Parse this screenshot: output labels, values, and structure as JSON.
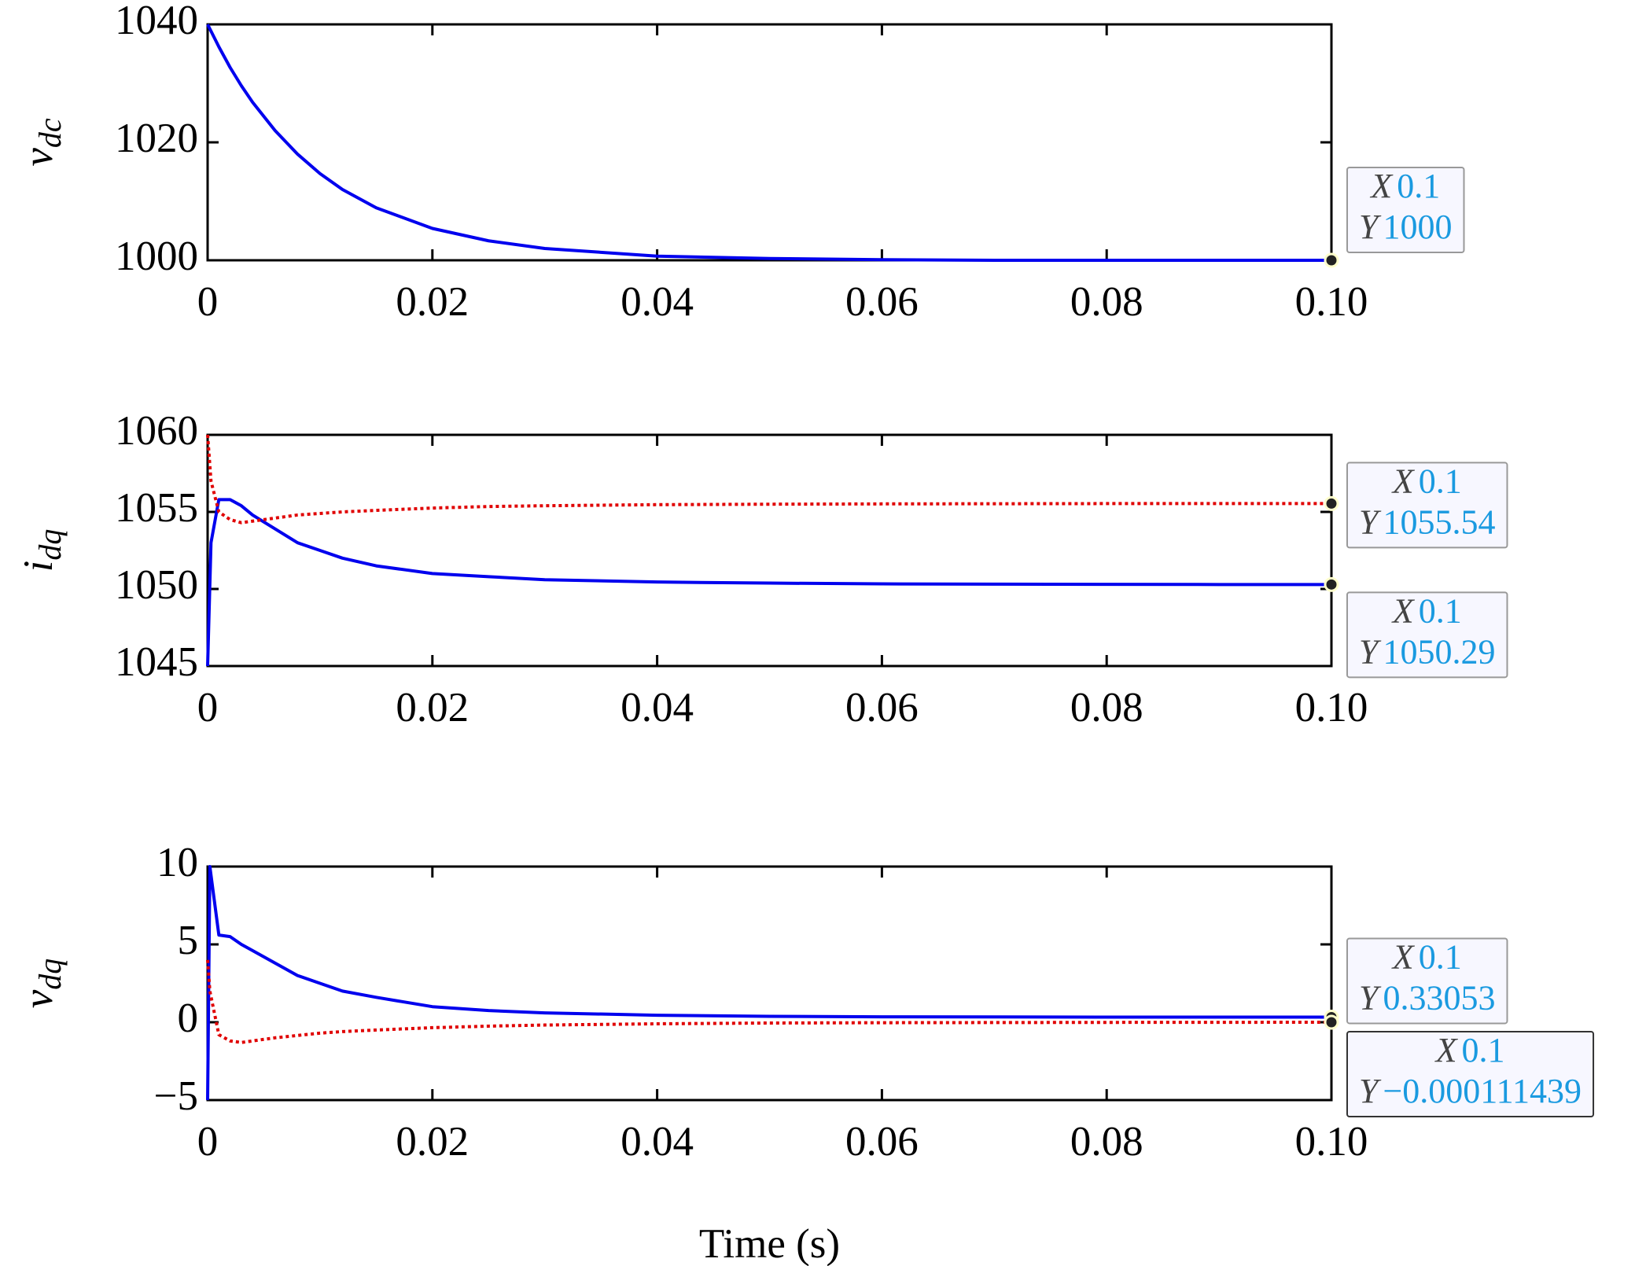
{
  "chart_data": [
    {
      "type": "line",
      "ylabel": "v",
      "ylabel_subscript": "dc",
      "x": [
        0,
        0.001,
        0.002,
        0.003,
        0.004,
        0.006,
        0.008,
        0.01,
        0.012,
        0.015,
        0.02,
        0.025,
        0.03,
        0.04,
        0.05,
        0.06,
        0.07,
        0.08,
        0.09,
        0.1
      ],
      "series": [
        {
          "color": "#0000ee",
          "style": "solid",
          "values": [
            1040,
            1036.2,
            1032.7,
            1029.6,
            1026.8,
            1022.0,
            1018.0,
            1014.7,
            1012.0,
            1008.9,
            1005.4,
            1003.3,
            1002.0,
            1000.7,
            1000.3,
            1000.1,
            1000.0,
            1000,
            1000,
            1000
          ]
        }
      ],
      "xlim": [
        0,
        0.1
      ],
      "xticks": [
        0,
        0.02,
        0.04,
        0.06,
        0.08,
        {
          "value": 0.1,
          "label": "0.10"
        }
      ],
      "ylim": [
        1000,
        1040
      ],
      "yticks": [
        1000,
        1020,
        1040
      ],
      "annotations": [
        {
          "x_name": "X",
          "x": 0.1,
          "y_name": "Y",
          "y": 1000
        }
      ]
    },
    {
      "type": "line",
      "ylabel": "i",
      "ylabel_subscript": "dq",
      "x": [
        0,
        0.0003,
        0.001,
        0.002,
        0.003,
        0.004,
        0.006,
        0.008,
        0.01,
        0.012,
        0.015,
        0.02,
        0.025,
        0.03,
        0.04,
        0.05,
        0.06,
        0.07,
        0.08,
        0.09,
        0.1
      ],
      "series": [
        {
          "color": "#0000ee",
          "style": "solid",
          "values": [
            1045,
            1053,
            1055.8,
            1055.8,
            1055.4,
            1054.8,
            1053.9,
            1053.0,
            1052.5,
            1052.0,
            1051.5,
            1051.0,
            1050.8,
            1050.6,
            1050.45,
            1050.38,
            1050.33,
            1050.31,
            1050.3,
            1050.29,
            1050.29
          ]
        },
        {
          "color": "#e00000",
          "style": "dotted",
          "values": [
            1060,
            1057,
            1055.0,
            1054.5,
            1054.3,
            1054.4,
            1054.6,
            1054.8,
            1054.9,
            1055.0,
            1055.1,
            1055.25,
            1055.35,
            1055.4,
            1055.47,
            1055.5,
            1055.52,
            1055.53,
            1055.54,
            1055.54,
            1055.54
          ]
        }
      ],
      "xlim": [
        0,
        0.1
      ],
      "xticks": [
        0,
        0.02,
        0.04,
        0.06,
        0.08,
        {
          "value": 0.1,
          "label": "0.10"
        }
      ],
      "ylim": [
        1045,
        1060
      ],
      "yticks": [
        1045,
        1050,
        1055,
        1060
      ],
      "annotations": [
        {
          "x_name": "X",
          "x": 0.1,
          "y_name": "Y",
          "y": 1055.54
        },
        {
          "x_name": "X",
          "x": 0.1,
          "y_name": "Y",
          "y": 1050.29
        }
      ]
    },
    {
      "type": "line",
      "ylabel": "v",
      "ylabel_subscript": "dq",
      "xlabel": "Time (s)",
      "x": [
        0,
        0.0002,
        0.001,
        0.002,
        0.003,
        0.004,
        0.006,
        0.008,
        0.01,
        0.012,
        0.015,
        0.02,
        0.025,
        0.03,
        0.04,
        0.05,
        0.06,
        0.07,
        0.08,
        0.09,
        0.1
      ],
      "series": [
        {
          "color": "#0000ee",
          "style": "solid",
          "values": [
            -5,
            10,
            5.6,
            5.5,
            5.0,
            4.6,
            3.8,
            3.0,
            2.5,
            2.0,
            1.6,
            1.0,
            0.75,
            0.6,
            0.45,
            0.38,
            0.35,
            0.34,
            0.33,
            0.33,
            0.33053
          ]
        },
        {
          "color": "#e00000",
          "style": "dotted",
          "values": [
            4,
            2,
            -0.8,
            -1.2,
            -1.3,
            -1.2,
            -1.0,
            -0.85,
            -0.7,
            -0.6,
            -0.5,
            -0.35,
            -0.25,
            -0.18,
            -0.1,
            -0.05,
            -0.03,
            -0.02,
            -0.01,
            -0.005,
            -0.000111439
          ]
        }
      ],
      "xlim": [
        0,
        0.1
      ],
      "xticks": [
        0,
        0.02,
        0.04,
        0.06,
        0.08,
        {
          "value": 0.1,
          "label": "0.10"
        }
      ],
      "ylim": [
        -5,
        10
      ],
      "yticks": [
        {
          "value": -5,
          "label": "−5"
        },
        0,
        5,
        10
      ],
      "annotations": [
        {
          "x_name": "X",
          "x": 0.1,
          "y_name": "Y",
          "y": 0.33053
        },
        {
          "x_name": "X",
          "x": 0.1,
          "y_name": "Y",
          "y": {
            "value": -0.000111439,
            "label": "−0.000111439"
          }
        }
      ]
    }
  ]
}
